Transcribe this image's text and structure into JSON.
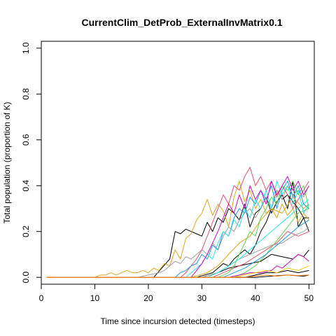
{
  "chart_data": {
    "type": "line",
    "title": "CurrentClim_DetProb_ExternalInvMatrix0.1",
    "xlabel": "Time since incursion detected (timesteps)",
    "ylabel": "Total population (proportion of K)",
    "xlim": [
      0,
      51
    ],
    "ylim": [
      -0.03,
      1.03
    ],
    "xticks": [
      0,
      10,
      20,
      30,
      40,
      50
    ],
    "yticks": [
      0.0,
      0.2,
      0.4,
      0.6,
      0.8,
      1.0
    ],
    "ytick_labels": [
      "0.0",
      "0.2",
      "0.4",
      "0.6",
      "0.8",
      "1.0"
    ],
    "grid": false,
    "legend": "none",
    "series": [
      {
        "color": "#000000",
        "x": [
          1,
          21,
          24,
          25,
          26,
          27,
          28,
          29,
          30,
          31,
          32,
          33,
          34,
          35,
          36,
          37,
          38,
          39,
          40,
          41,
          42,
          43,
          44,
          45,
          46,
          47,
          48,
          49,
          50
        ],
        "y": [
          0,
          0,
          0.08,
          0.2,
          0.19,
          0.21,
          0.2,
          0.19,
          0.18,
          0.24,
          0.2,
          0.26,
          0.24,
          0.3,
          0.28,
          0.25,
          0.32,
          0.22,
          0.28,
          0.3,
          0.35,
          0.28,
          0.33,
          0.36,
          0.3,
          0.42,
          0.22,
          0.26,
          0.26
        ]
      },
      {
        "color": "#000000",
        "x": [
          1,
          29,
          32,
          33,
          34,
          35,
          36,
          37,
          38,
          39,
          40,
          41,
          42,
          43,
          44,
          45,
          46,
          47,
          48,
          49,
          50
        ],
        "y": [
          0,
          0,
          0.02,
          0.04,
          0.06,
          0.05,
          0.08,
          0.1,
          0.12,
          0.1,
          0.14,
          0.2,
          0.24,
          0.3,
          0.38,
          0.34,
          0.36,
          0.33,
          0.3,
          0.26,
          0.2
        ]
      },
      {
        "color": "#000000",
        "x": [
          1,
          30,
          33,
          35,
          37,
          39,
          41,
          43,
          45,
          47,
          48,
          49,
          50
        ],
        "y": [
          0,
          0,
          0.02,
          0.04,
          0.05,
          0.06,
          0.07,
          0.1,
          0.09,
          0.08,
          0.1,
          0.09,
          0.12
        ]
      },
      {
        "color": "#000000",
        "x": [
          1,
          38,
          40,
          42,
          44,
          46,
          48,
          50
        ],
        "y": [
          0,
          0,
          0.01,
          0.02,
          0.02,
          0.03,
          0.02,
          0.03
        ]
      },
      {
        "color": "#000000",
        "x": [
          1,
          40,
          43,
          46,
          49,
          50
        ],
        "y": [
          0,
          0,
          0.005,
          0.01,
          0.005,
          0.01
        ]
      },
      {
        "color": "#DAA520",
        "x": [
          1,
          10,
          11,
          12,
          13,
          14,
          15,
          16,
          17,
          18,
          19,
          20,
          21,
          22,
          23,
          24,
          25,
          26,
          27,
          28,
          29,
          30,
          31,
          32,
          33,
          34,
          35,
          36,
          37,
          38,
          39,
          40,
          41,
          42,
          43,
          44,
          45,
          46,
          47,
          48,
          49,
          50
        ],
        "y": [
          0,
          0,
          0.01,
          0.01,
          0.02,
          0.01,
          0.02,
          0.03,
          0.02,
          0.02,
          0.03,
          0.02,
          0.04,
          0.03,
          0.06,
          0.05,
          0.12,
          0.08,
          0.17,
          0.19,
          0.25,
          0.28,
          0.34,
          0.27,
          0.32,
          0.29,
          0.22,
          0.35,
          0.42,
          0.33,
          0.38,
          0.3,
          0.34,
          0.28,
          0.3,
          0.26,
          0.32,
          0.27,
          0.3,
          0.24,
          0.28,
          0.25
        ]
      },
      {
        "color": "#DAA520",
        "x": [
          1,
          28,
          31,
          33,
          35,
          37,
          39,
          41,
          43,
          45,
          47,
          49,
          50
        ],
        "y": [
          0,
          0,
          0.02,
          0.05,
          0.1,
          0.15,
          0.18,
          0.25,
          0.3,
          0.28,
          0.35,
          0.3,
          0.32
        ]
      },
      {
        "color": "#9E9E9E",
        "x": [
          1,
          18,
          20,
          22,
          23,
          24,
          25,
          26,
          27,
          28,
          29,
          30,
          31,
          32,
          33,
          34,
          35,
          36,
          37,
          38,
          39,
          40,
          41,
          42,
          43,
          44,
          45,
          46,
          47,
          48,
          49,
          50
        ],
        "y": [
          0,
          0,
          0.01,
          0.02,
          0.03,
          0.05,
          0.07,
          0.06,
          0.09,
          0.08,
          0.1,
          0.12,
          0.1,
          0.15,
          0.12,
          0.18,
          0.22,
          0.2,
          0.25,
          0.28,
          0.3,
          0.26,
          0.3,
          0.35,
          0.3,
          0.38,
          0.34,
          0.4,
          0.36,
          0.38,
          0.35,
          0.4
        ]
      },
      {
        "color": "#9E9E9E",
        "x": [
          1,
          30,
          33,
          35,
          37,
          39,
          41,
          43,
          45,
          47,
          49,
          50
        ],
        "y": [
          0,
          0,
          0.02,
          0.05,
          0.08,
          0.1,
          0.12,
          0.14,
          0.15,
          0.18,
          0.2,
          0.22
        ]
      },
      {
        "color": "#DF536B",
        "x": [
          1,
          26,
          27,
          28,
          29,
          30,
          31,
          32,
          33,
          34,
          35,
          36,
          37,
          38,
          39,
          40,
          41,
          42,
          43,
          44,
          45,
          46,
          47,
          48,
          49,
          50
        ],
        "y": [
          0,
          0,
          0.02,
          0.05,
          0.08,
          0.12,
          0.18,
          0.24,
          0.3,
          0.36,
          0.32,
          0.4,
          0.38,
          0.44,
          0.48,
          0.4,
          0.44,
          0.38,
          0.42,
          0.35,
          0.4,
          0.36,
          0.3,
          0.34,
          0.38,
          0.42
        ]
      },
      {
        "color": "#DF536B",
        "x": [
          1,
          32,
          34,
          36,
          38,
          40,
          42,
          44,
          46,
          48,
          50
        ],
        "y": [
          0,
          0,
          0.02,
          0.04,
          0.06,
          0.09,
          0.12,
          0.15,
          0.2,
          0.18,
          0.2
        ]
      },
      {
        "color": "#61D04F",
        "x": [
          1,
          33,
          35,
          36,
          37,
          38,
          39,
          40,
          41,
          42,
          43,
          44,
          45,
          46,
          47,
          48,
          49,
          50
        ],
        "y": [
          0,
          0,
          0.02,
          0.05,
          0.1,
          0.15,
          0.2,
          0.18,
          0.26,
          0.3,
          0.35,
          0.32,
          0.4,
          0.38,
          0.42,
          0.36,
          0.4,
          0.3
        ]
      },
      {
        "color": "#61D04F",
        "x": [
          1,
          36,
          38,
          40,
          42,
          44,
          46,
          48,
          50
        ],
        "y": [
          0,
          0,
          0.02,
          0.05,
          0.1,
          0.16,
          0.22,
          0.28,
          0.3
        ]
      },
      {
        "color": "#2297E6",
        "x": [
          1,
          25,
          26,
          27,
          28,
          29,
          30,
          31,
          32,
          33,
          34,
          35,
          36,
          37,
          38,
          39,
          40,
          41,
          42,
          43,
          44,
          45,
          46,
          47,
          48,
          49,
          50
        ],
        "y": [
          0,
          0,
          0.02,
          0.03,
          0.05,
          0.06,
          0.1,
          0.08,
          0.14,
          0.12,
          0.2,
          0.18,
          0.26,
          0.3,
          0.28,
          0.35,
          0.32,
          0.38,
          0.34,
          0.4,
          0.3,
          0.38,
          0.42,
          0.35,
          0.4,
          0.32,
          0.3
        ]
      },
      {
        "color": "#2297E6",
        "x": [
          1,
          34,
          36,
          38,
          40,
          42,
          44,
          46,
          48,
          50
        ],
        "y": [
          0,
          0,
          0.02,
          0.04,
          0.07,
          0.1,
          0.14,
          0.18,
          0.22,
          0.25
        ]
      },
      {
        "color": "#28E2E5",
        "x": [
          1,
          27,
          28,
          29,
          30,
          31,
          32,
          33,
          34,
          35,
          36,
          37,
          38,
          39,
          40,
          41,
          42,
          43,
          44,
          45,
          46,
          47,
          48,
          49,
          50
        ],
        "y": [
          0,
          0,
          0.02,
          0.04,
          0.06,
          0.1,
          0.08,
          0.15,
          0.2,
          0.18,
          0.25,
          0.22,
          0.3,
          0.26,
          0.34,
          0.3,
          0.38,
          0.3,
          0.42,
          0.36,
          0.4,
          0.32,
          0.38,
          0.28,
          0.32
        ]
      },
      {
        "color": "#28E2E5",
        "x": [
          1,
          31,
          33,
          35,
          37,
          39,
          41,
          43,
          45,
          47,
          49,
          50
        ],
        "y": [
          0,
          0,
          0.02,
          0.05,
          0.08,
          0.12,
          0.16,
          0.2,
          0.24,
          0.28,
          0.32,
          0.34
        ]
      },
      {
        "color": "#CD0BBC",
        "x": [
          1,
          28,
          29,
          30,
          31,
          32,
          33,
          34,
          35,
          36,
          37,
          38,
          39,
          40,
          41,
          42,
          43,
          44,
          45,
          46,
          47,
          48,
          49,
          50
        ],
        "y": [
          0,
          0,
          0.03,
          0.06,
          0.1,
          0.15,
          0.2,
          0.26,
          0.32,
          0.28,
          0.36,
          0.3,
          0.4,
          0.34,
          0.38,
          0.32,
          0.42,
          0.36,
          0.4,
          0.44,
          0.38,
          0.42,
          0.36,
          0.4
        ]
      },
      {
        "color": "#CD0BBC",
        "x": [
          1,
          35,
          37,
          39,
          41,
          43,
          44,
          45,
          46,
          47,
          48,
          49,
          50
        ],
        "y": [
          0,
          0,
          0.01,
          0.02,
          0.02,
          0.03,
          0.05,
          0.04,
          0.06,
          0.08,
          0.1,
          0.09,
          0.07
        ]
      },
      {
        "color": "#F5C710",
        "x": [
          1,
          36,
          38,
          40,
          42,
          44,
          46,
          48,
          50
        ],
        "y": [
          0,
          0,
          0.01,
          0.02,
          0.03,
          0.02,
          0.04,
          0.03,
          0.05
        ]
      },
      {
        "color": "#FF7F0E",
        "x": [
          1,
          38,
          40,
          42,
          44,
          46,
          48,
          50
        ],
        "y": [
          0,
          0,
          0.005,
          0.01,
          0.005,
          0.01,
          0.008,
          0.01
        ]
      }
    ]
  }
}
